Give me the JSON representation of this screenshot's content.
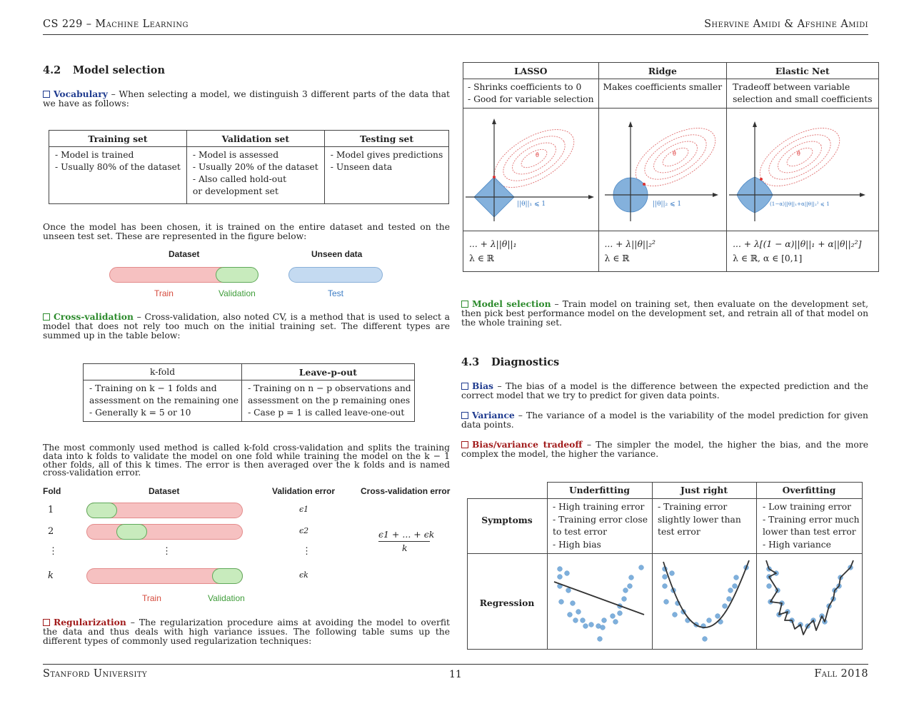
{
  "header": {
    "left": "CS 229 – Machine Learning",
    "right": "Shervine Amidi & Afshine Amidi"
  },
  "footer": {
    "left": "Stanford University",
    "page": "11",
    "right": "Fall 2018"
  },
  "model_selection": {
    "number": "4.2",
    "title": "Model selection",
    "vocab_label": "Vocabulary",
    "vocab_text": "– When selecting a model, we distinguish 3 different parts of the data that we have as follows:",
    "sets_table": {
      "headers": [
        "Training set",
        "Validation set",
        "Testing set"
      ],
      "cols": [
        [
          "- Model is trained",
          "- Usually 80% of the dataset"
        ],
        [
          "- Model is assessed",
          "- Usually 20% of the dataset",
          "- Also called hold-out",
          "or development set"
        ],
        [
          "- Model gives predictions",
          "- Unseen data"
        ]
      ]
    },
    "after_text": "Once the model has been chosen, it is trained on the entire dataset and tested on the unseen test set. These are represented in the figure below:",
    "fig1": {
      "dataset_label": "Dataset",
      "unseen_label": "Unseen data",
      "train_label": "Train",
      "validation_label": "Validation",
      "test_label": "Test"
    },
    "cv_label": "Cross-validation",
    "cv_text": "– Cross-validation, also noted CV, is a method that is used to select a model that does not rely too much on the initial training set. The different types are summed up in the table below:",
    "cv_table": {
      "headers": [
        "k-fold",
        "Leave-p-out"
      ],
      "cols": [
        [
          "- Training on k − 1 folds and",
          "assessment on the remaining one",
          "- Generally k = 5 or 10"
        ],
        [
          "- Training on n − p observations and",
          "assessment on the p remaining ones",
          "- Case p = 1 is called leave-one-out"
        ]
      ]
    },
    "kfold_text": "The most commonly used method is called k-fold cross-validation and splits the training data into k folds to validate the model on one fold while training the model on the k − 1 other folds, all of this k times. The error is then averaged over the k folds and is named cross-validation error.",
    "fig2": {
      "fold_label": "Fold",
      "dataset_label": "Dataset",
      "val_error_label": "Validation error",
      "cv_error_label": "Cross-validation error",
      "folds": [
        "1",
        "2",
        "⋮",
        "k"
      ],
      "errors": [
        "ϵ1",
        "ϵ2",
        "⋮",
        "ϵk"
      ],
      "cv_numerator": "ϵ1 + ... + ϵk",
      "cv_denominator": "k",
      "train_label": "Train",
      "validation_label": "Validation"
    },
    "reg_label": "Regularization",
    "reg_text": "– The regularization procedure aims at avoiding the model to overfit the data and thus deals with high variance issues. The following table sums up the different types of commonly used regularization techniques:"
  },
  "reg_table": {
    "headers": [
      "LASSO",
      "Ridge",
      "Elastic Net"
    ],
    "desc": [
      [
        "- Shrinks coefficients to 0",
        "- Good for variable selection"
      ],
      [
        "Makes coefficients smaller"
      ],
      [
        "Tradeoff between variable",
        "selection and small coefficients"
      ]
    ],
    "constraint_labels": [
      "||θ||₁ ⩽ 1",
      "||θ||₂ ⩽ 1",
      "(1−α)||θ||₁+α||θ||₂² ⩽ 1"
    ],
    "theta_hat": "θ̂",
    "formulas": [
      [
        "... + λ||θ||₁",
        "λ ∈ ℝ"
      ],
      [
        "... + λ||θ||₂²",
        "λ ∈ ℝ"
      ],
      [
        "... + λ[(1 − α)||θ||₁ + α||θ||₂²]",
        "λ ∈ ℝ,   α ∈ [0,1]"
      ]
    ]
  },
  "model_sel_para": {
    "label": "Model selection",
    "text": "– Train model on training set, then evaluate on the development set, then pick best performance model on the development set, and retrain all of that model on the whole training set."
  },
  "diagnostics": {
    "number": "4.3",
    "title": "Diagnostics",
    "bias_label": "Bias",
    "bias_text": "– The bias of a model is the difference between the expected prediction and the correct model that we try to predict for given data points.",
    "variance_label": "Variance",
    "variance_text": "– The variance of a model is the variability of the model prediction for given data points.",
    "tradeoff_label": "Bias/variance tradeoff",
    "tradeoff_text": "– The simpler the model, the higher the bias, and the more complex the model, the higher the variance.",
    "table": {
      "headers": [
        "Underfitting",
        "Just right",
        "Overfitting"
      ],
      "row_symptoms": "Symptoms",
      "row_regression": "Regression",
      "symptoms": [
        [
          "- High training error",
          "- Training error close",
          "to test error",
          "- High bias"
        ],
        [
          "- Training error",
          "slightly lower than",
          "test error"
        ],
        [
          "- Low training error",
          "- Training error much",
          "lower than test error",
          "- High variance"
        ]
      ]
    }
  }
}
